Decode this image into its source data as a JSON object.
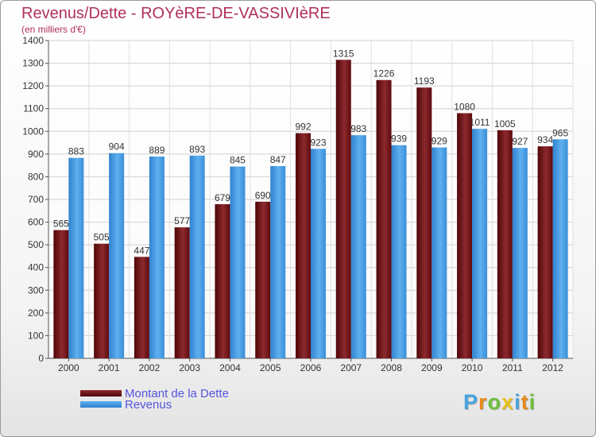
{
  "header": {
    "title": "Revenus/Dette - ROYèRE-DE-VASSIVIèRE",
    "subtitle": "(en milliers d'€)"
  },
  "legend": {
    "items": [
      {
        "label": "Montant de la Dette",
        "color": "#6b0e14"
      },
      {
        "label": "Revenus",
        "color": "#3a8fd8"
      }
    ]
  },
  "logo": {
    "letters": [
      "P",
      "r",
      "o",
      "x",
      "i",
      "t",
      "i"
    ],
    "colors": [
      "#4aa3e0",
      "#e88a1a",
      "#6cbf3a",
      "#e8c01a",
      "#4aa3e0",
      "#e88a1a",
      "#6cbf3a"
    ]
  },
  "chart_data": {
    "type": "bar",
    "title": "Revenus/Dette - ROYèRE-DE-VASSIVIèRE",
    "ylabel": "(en milliers d'€)",
    "xlabel": "",
    "ylim": [
      0,
      1400
    ],
    "yticks": [
      0,
      100,
      200,
      300,
      400,
      500,
      600,
      700,
      800,
      900,
      1000,
      1100,
      1200,
      1300,
      1400
    ],
    "grid": true,
    "legend_position": "bottom-left",
    "categories": [
      "2000",
      "2001",
      "2002",
      "2003",
      "2004",
      "2005",
      "2006",
      "2007",
      "2008",
      "2009",
      "2010",
      "2011",
      "2012"
    ],
    "series": [
      {
        "name": "Montant de la Dette",
        "color": "#6b0e14",
        "values": [
          565,
          505,
          447,
          577,
          679,
          690,
          992,
          1315,
          1226,
          1193,
          1080,
          1005,
          934
        ]
      },
      {
        "name": "Revenus",
        "color": "#3a8fd8",
        "values": [
          883,
          904,
          889,
          893,
          845,
          847,
          923,
          983,
          939,
          929,
          1011,
          927,
          965
        ]
      }
    ]
  }
}
